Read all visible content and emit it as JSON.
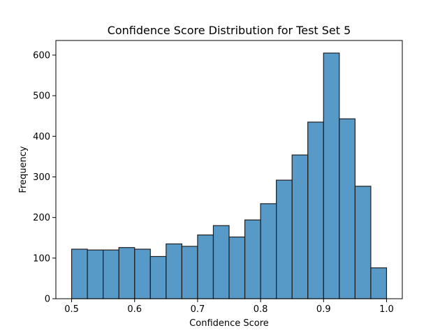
{
  "chart_data": {
    "type": "bar",
    "subtype": "histogram",
    "title": "Confidence Score Distribution for Test Set 5",
    "xlabel": "Confidence Score",
    "ylabel": "Frequency",
    "bins": [
      {
        "x0": 0.5,
        "x1": 0.525,
        "value": 122
      },
      {
        "x0": 0.525,
        "x1": 0.55,
        "value": 120
      },
      {
        "x0": 0.55,
        "x1": 0.575,
        "value": 120
      },
      {
        "x0": 0.575,
        "x1": 0.6,
        "value": 126
      },
      {
        "x0": 0.6,
        "x1": 0.625,
        "value": 122
      },
      {
        "x0": 0.625,
        "x1": 0.65,
        "value": 104
      },
      {
        "x0": 0.65,
        "x1": 0.675,
        "value": 135
      },
      {
        "x0": 0.675,
        "x1": 0.7,
        "value": 129
      },
      {
        "x0": 0.7,
        "x1": 0.725,
        "value": 157
      },
      {
        "x0": 0.725,
        "x1": 0.75,
        "value": 180
      },
      {
        "x0": 0.75,
        "x1": 0.775,
        "value": 152
      },
      {
        "x0": 0.775,
        "x1": 0.8,
        "value": 194
      },
      {
        "x0": 0.8,
        "x1": 0.825,
        "value": 234
      },
      {
        "x0": 0.825,
        "x1": 0.85,
        "value": 292
      },
      {
        "x0": 0.85,
        "x1": 0.875,
        "value": 354
      },
      {
        "x0": 0.875,
        "x1": 0.9,
        "value": 435
      },
      {
        "x0": 0.9,
        "x1": 0.925,
        "value": 605
      },
      {
        "x0": 0.925,
        "x1": 0.95,
        "value": 443
      },
      {
        "x0": 0.95,
        "x1": 0.975,
        "value": 277
      },
      {
        "x0": 0.975,
        "x1": 1.0,
        "value": 76
      }
    ],
    "xlim": [
      0.475,
      1.025
    ],
    "ylim": [
      0,
      636
    ],
    "xticks": [
      0.5,
      0.6,
      0.7,
      0.8,
      0.9,
      1.0
    ],
    "xtick_labels": [
      "0.5",
      "0.6",
      "0.7",
      "0.8",
      "0.9",
      "1.0"
    ],
    "yticks": [
      0,
      100,
      200,
      300,
      400,
      500,
      600
    ],
    "ytick_labels": [
      "0",
      "100",
      "200",
      "300",
      "400",
      "500",
      "600"
    ],
    "grid": false,
    "bar_color": "#1f77b4",
    "edge_color": "#1f1f1f"
  }
}
